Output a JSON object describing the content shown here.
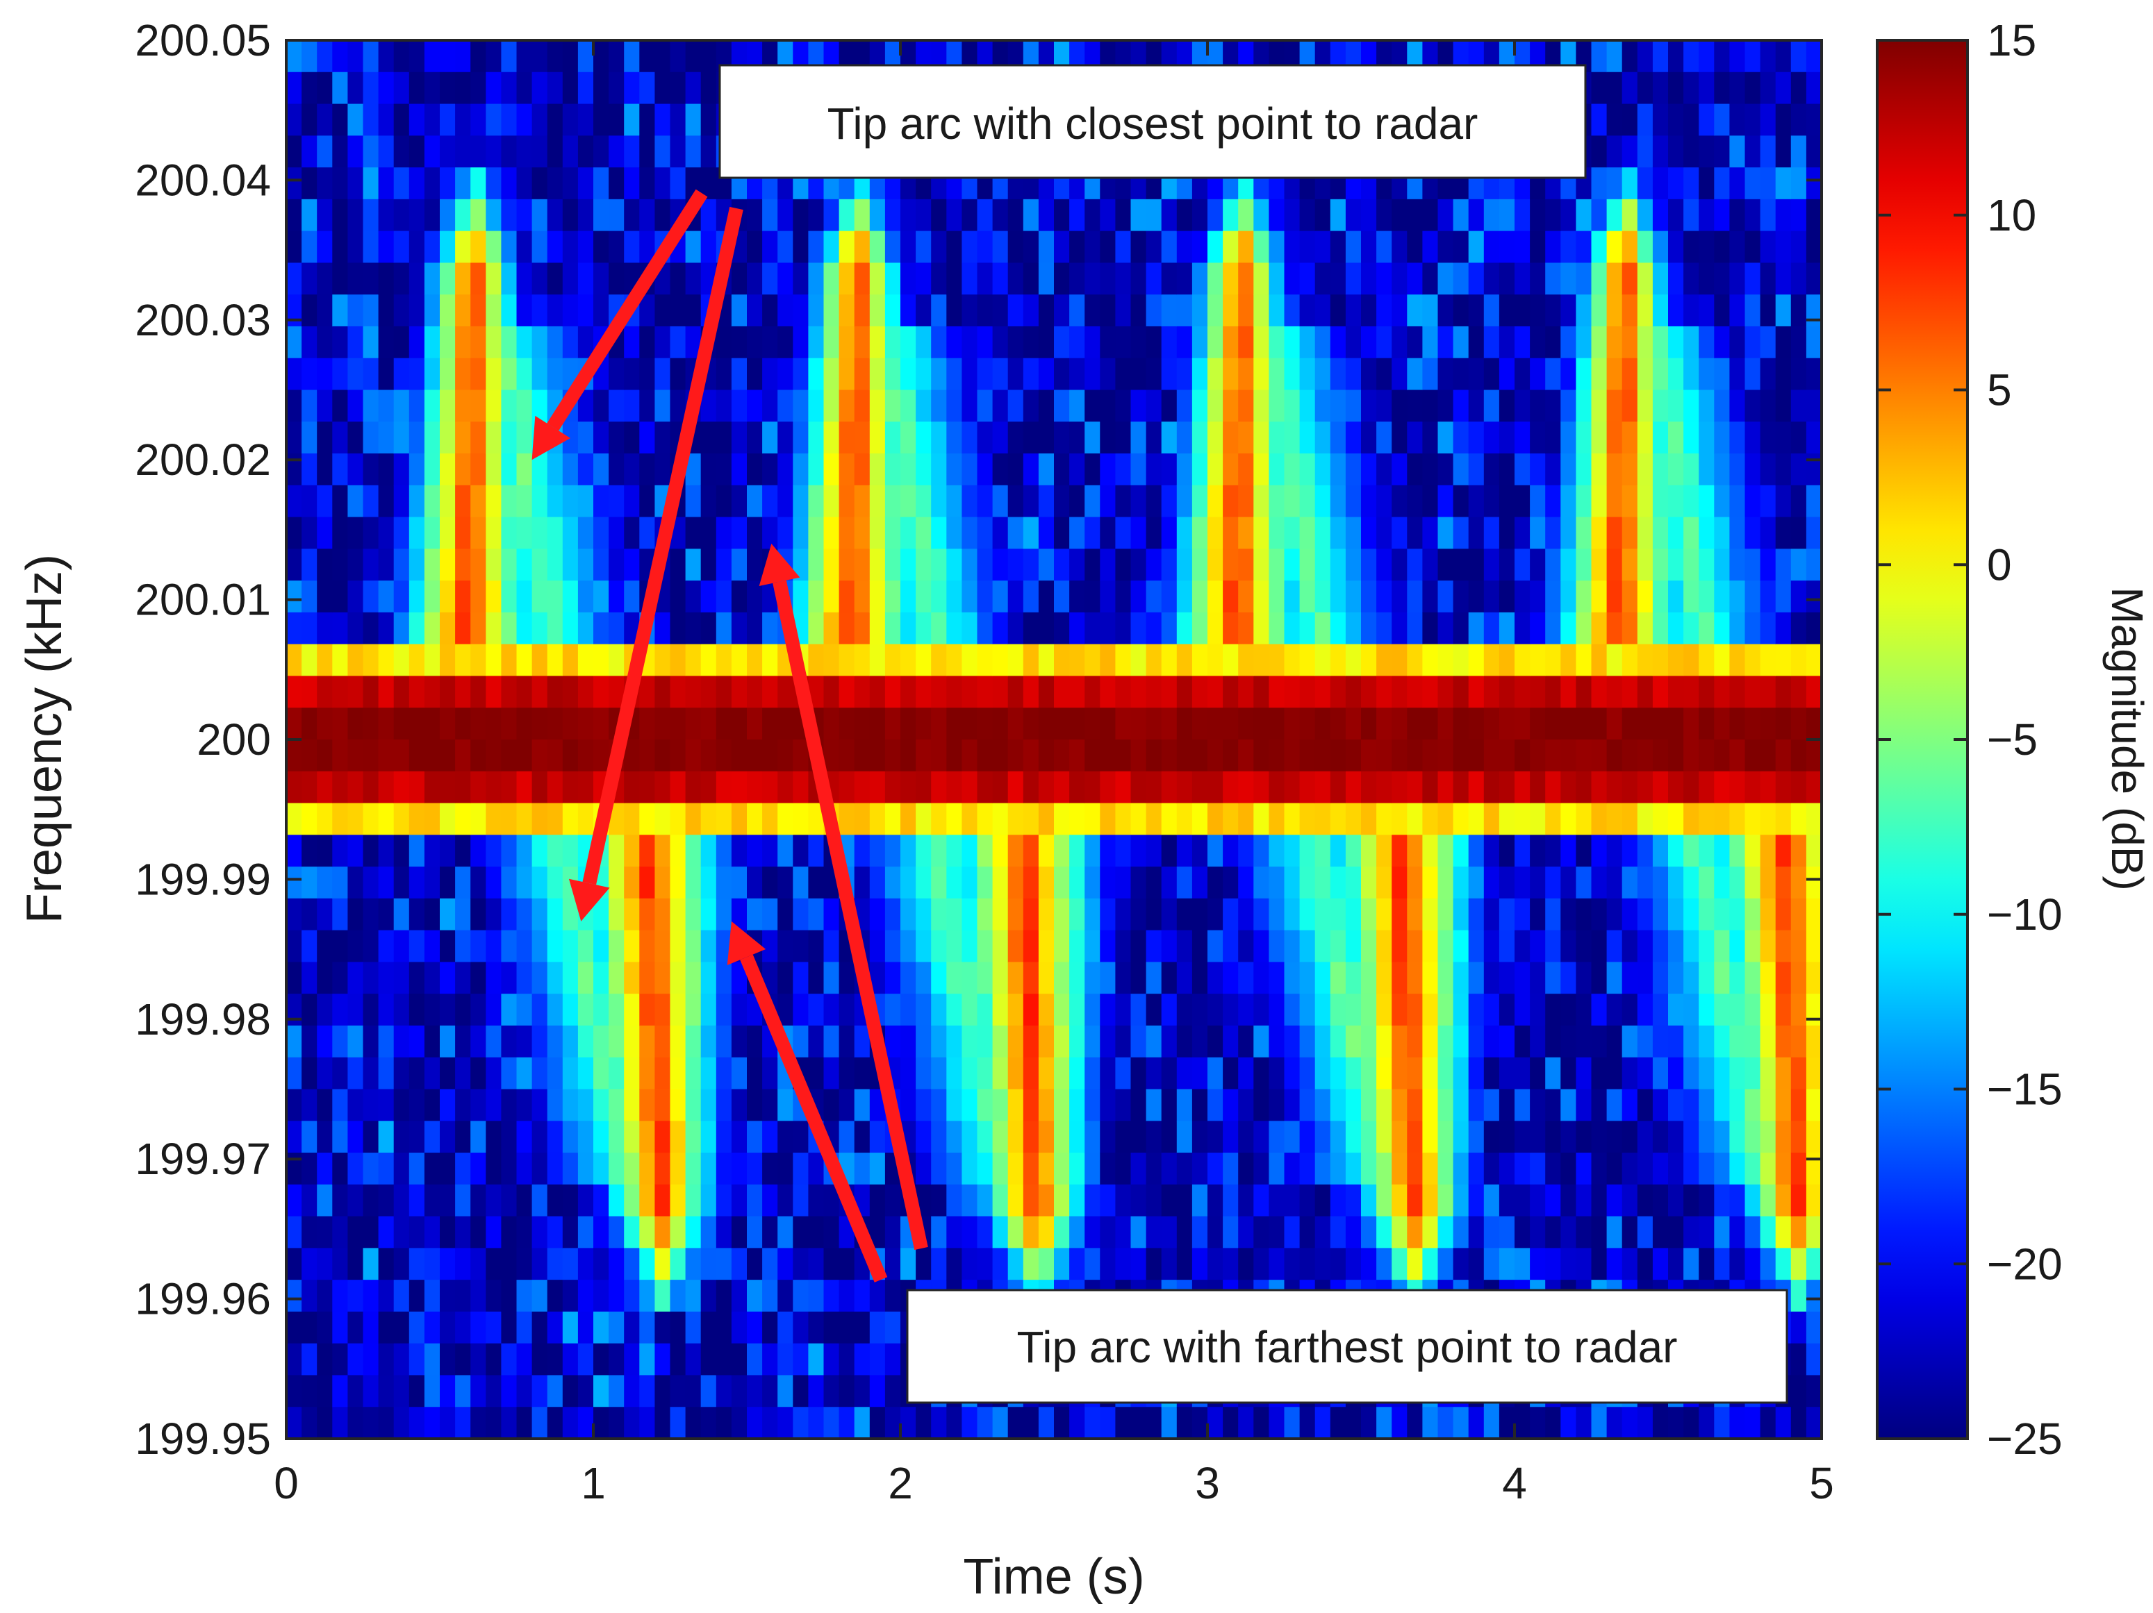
{
  "chart_data": {
    "type": "heatmap",
    "title": "",
    "xlabel": "Time (s)",
    "ylabel": "Frequency (kHz)",
    "colorbar_label": "Magnitude (dB)",
    "colormap": "jet",
    "xlim": [
      0,
      5
    ],
    "ylim": [
      199.95,
      200.05
    ],
    "clim": [
      -25,
      15
    ],
    "x_ticks": [
      0,
      1,
      2,
      3,
      4,
      5
    ],
    "x_tick_labels": [
      "0",
      "1",
      "2",
      "3",
      "4",
      "5"
    ],
    "y_ticks": [
      199.95,
      199.96,
      199.97,
      199.98,
      199.99,
      200,
      200.01,
      200.02,
      200.03,
      200.04,
      200.05
    ],
    "y_tick_labels": [
      "199.95",
      "199.96",
      "199.97",
      "199.98",
      "199.99",
      "200",
      "200.01",
      "200.02",
      "200.03",
      "200.04",
      "200.05"
    ],
    "colorbar_ticks": [
      15,
      10,
      5,
      0,
      -5,
      -10,
      -15,
      -20,
      -25
    ],
    "colorbar_tick_labels": [
      "15",
      "10",
      "5",
      "0",
      "−5",
      "−10",
      "−15",
      "−20",
      "−25"
    ],
    "features": {
      "carrier_frequency": 200.0,
      "upper_arc_peak_times": [
        0.6,
        1.85,
        3.1,
        4.35
      ],
      "upper_arc_peak_frequency": 200.034,
      "lower_arc_peak_times": [
        1.2,
        2.42,
        3.65,
        4.9
      ],
      "lower_arc_peak_frequency": 199.966
    },
    "annotations": [
      {
        "text": "Tip arc with closest point to radar"
      },
      {
        "text": "Tip arc with farthest point to radar"
      }
    ]
  },
  "colors": {
    "arrow": "#ff1a1a",
    "axes": "#262626",
    "background": "#ffffff"
  }
}
